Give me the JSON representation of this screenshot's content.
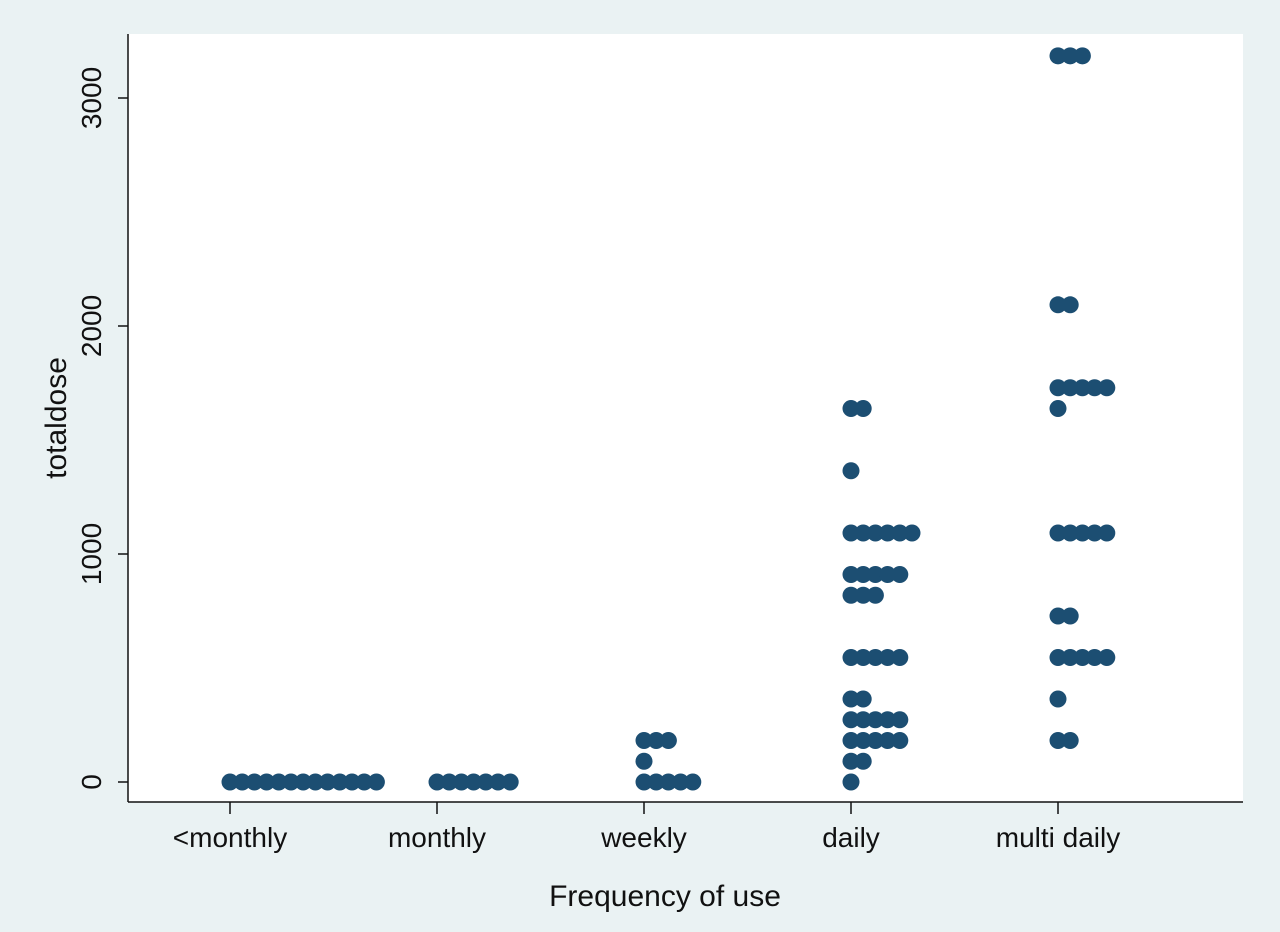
{
  "chart_data": {
    "type": "scatter",
    "subtype": "dot plot",
    "title": "",
    "xlabel": "Frequency of use",
    "ylabel": "totaldose",
    "categories": [
      "<monthly",
      "monthly",
      "weekly",
      "daily",
      "multi daily"
    ],
    "ylim": [
      -90,
      3270
    ],
    "yticks": [
      0,
      1000,
      2000,
      3000
    ],
    "grid": false,
    "legend": "none",
    "marker_color": "#1c4e72",
    "plot_background": "#ffffff",
    "page_background": "#eaf2f3",
    "groups": [
      {
        "category": "<monthly",
        "points": [
          {
            "y": 0,
            "count": 13
          }
        ]
      },
      {
        "category": "monthly",
        "points": [
          {
            "y": 0,
            "count": 7
          }
        ]
      },
      {
        "category": "weekly",
        "points": [
          {
            "y": 182,
            "count": 3
          },
          {
            "y": 91,
            "count": 1
          },
          {
            "y": 0,
            "count": 5
          }
        ]
      },
      {
        "category": "daily",
        "points": [
          {
            "y": 1638,
            "count": 2
          },
          {
            "y": 1365,
            "count": 1
          },
          {
            "y": 1092,
            "count": 6
          },
          {
            "y": 910,
            "count": 5
          },
          {
            "y": 819,
            "count": 3
          },
          {
            "y": 546,
            "count": 5
          },
          {
            "y": 364,
            "count": 2
          },
          {
            "y": 273,
            "count": 5
          },
          {
            "y": 182,
            "count": 5
          },
          {
            "y": 91,
            "count": 2
          },
          {
            "y": 0,
            "count": 1
          }
        ]
      },
      {
        "category": "multi daily",
        "points": [
          {
            "y": 3185,
            "count": 3
          },
          {
            "y": 2093,
            "count": 2
          },
          {
            "y": 1729,
            "count": 5
          },
          {
            "y": 1638,
            "count": 1
          },
          {
            "y": 1092,
            "count": 5
          },
          {
            "y": 728,
            "count": 2
          },
          {
            "y": 546,
            "count": 5
          },
          {
            "y": 364,
            "count": 1
          },
          {
            "y": 182,
            "count": 2
          }
        ]
      }
    ]
  }
}
